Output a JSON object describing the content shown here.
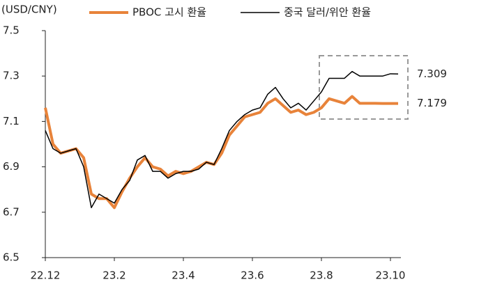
{
  "chart_data": {
    "type": "line",
    "y_axis_label": "(USD/CNY)",
    "categories": [
      "22.12",
      null,
      null,
      null,
      null,
      null,
      null,
      null,
      null,
      "23.2",
      null,
      null,
      null,
      null,
      null,
      null,
      null,
      null,
      "23.4",
      null,
      null,
      null,
      null,
      null,
      null,
      null,
      null,
      "23.6",
      null,
      null,
      null,
      null,
      null,
      null,
      null,
      null,
      "23.8",
      null,
      null,
      null,
      null,
      null,
      null,
      null,
      null,
      "23.10",
      null
    ],
    "series": [
      {
        "name": "PBOC 고시 환율",
        "color": "#e8833a",
        "width": 4,
        "values": [
          7.16,
          7.0,
          6.96,
          6.97,
          6.98,
          6.94,
          6.78,
          6.76,
          6.76,
          6.72,
          6.79,
          6.85,
          6.9,
          6.94,
          6.9,
          6.89,
          6.86,
          6.88,
          6.87,
          6.88,
          6.9,
          6.92,
          6.91,
          6.96,
          7.04,
          7.08,
          7.12,
          7.13,
          7.14,
          7.18,
          7.2,
          7.17,
          7.14,
          7.15,
          7.13,
          7.14,
          7.16,
          7.2,
          7.19,
          7.18,
          7.21,
          7.18,
          7.18,
          7.18,
          7.179,
          7.179,
          7.179
        ]
      },
      {
        "name": "중국 달러/위안 환율",
        "color": "#000000",
        "width": 1.5,
        "values": [
          7.06,
          6.98,
          6.96,
          6.97,
          6.98,
          6.9,
          6.72,
          6.78,
          6.76,
          6.74,
          6.8,
          6.84,
          6.93,
          6.95,
          6.88,
          6.88,
          6.85,
          6.87,
          6.88,
          6.88,
          6.89,
          6.92,
          6.91,
          6.98,
          7.06,
          7.1,
          7.13,
          7.15,
          7.16,
          7.22,
          7.25,
          7.2,
          7.16,
          7.18,
          7.15,
          7.19,
          7.23,
          7.29,
          7.29,
          7.29,
          7.32,
          7.3,
          7.3,
          7.3,
          7.3,
          7.31,
          7.309
        ]
      }
    ],
    "ylim": [
      6.5,
      7.5
    ],
    "yticks": [
      6.5,
      6.7,
      6.9,
      7.1,
      7.3,
      7.5
    ]
  }
}
